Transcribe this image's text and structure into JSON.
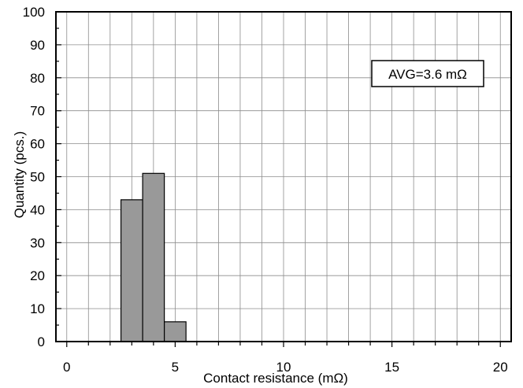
{
  "chart_data": {
    "type": "bar",
    "title": "",
    "xlabel": "Contact resistance (mΩ)",
    "ylabel": "Quantity   (pcs.)",
    "xlim": [
      -0.5,
      20.5
    ],
    "ylim": [
      0,
      100
    ],
    "x_ticks": [
      0,
      5,
      10,
      15,
      20
    ],
    "y_ticks": [
      0,
      10,
      20,
      30,
      40,
      50,
      60,
      70,
      80,
      90,
      100
    ],
    "grid": true,
    "bars": [
      {
        "x_start": 2.5,
        "x_end": 3.5,
        "value": 43
      },
      {
        "x_start": 3.5,
        "x_end": 4.5,
        "value": 51
      },
      {
        "x_start": 4.5,
        "x_end": 5.5,
        "value": 6
      }
    ],
    "annotation": "AVG=3.6 mΩ",
    "bar_color": "#999999"
  }
}
